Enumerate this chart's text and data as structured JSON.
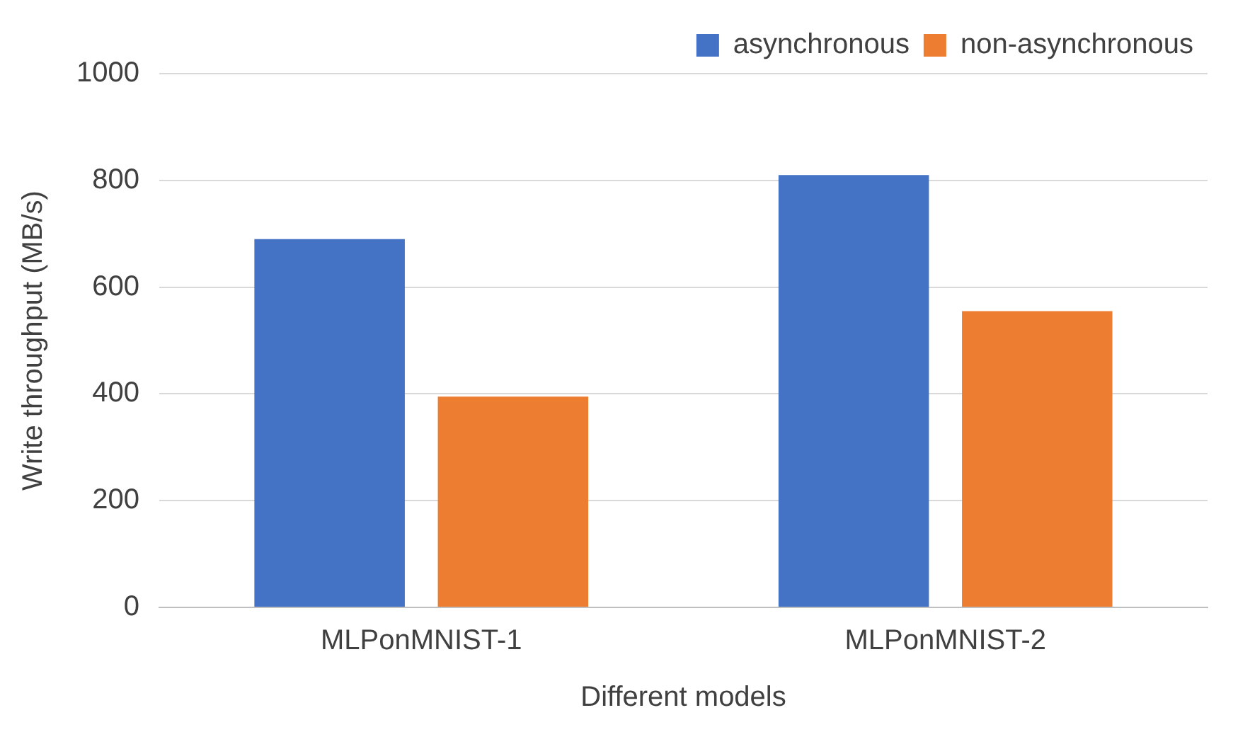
{
  "chart_data": {
    "type": "bar",
    "xlabel": "Different models",
    "ylabel": "Write throughput (MB/s)",
    "categories": [
      "MLPonMNIST-1",
      "MLPonMNIST-2"
    ],
    "series": [
      {
        "name": "asynchronous",
        "color": "#4472c4",
        "values": [
          690,
          810
        ]
      },
      {
        "name": "non-asynchronous",
        "color": "#ed7d31",
        "values": [
          395,
          555
        ]
      }
    ],
    "ylim": [
      0,
      1000
    ],
    "yticks": [
      0,
      200,
      400,
      600,
      800,
      1000
    ],
    "grid": "y",
    "legend": "top right"
  }
}
